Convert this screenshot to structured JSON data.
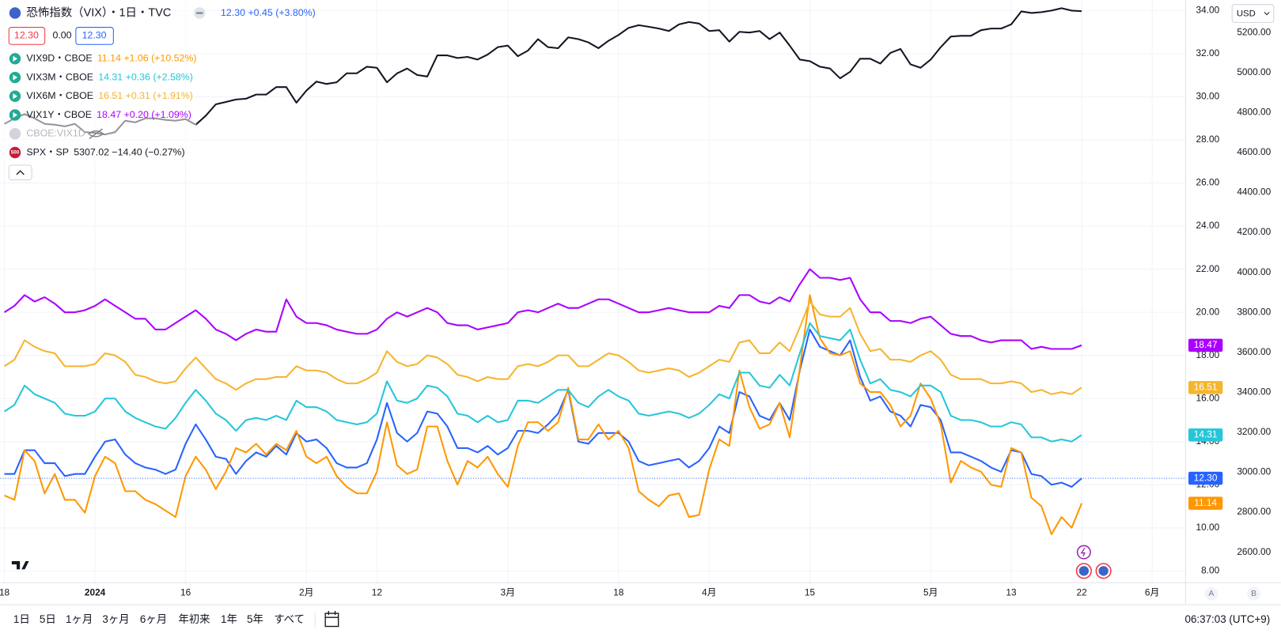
{
  "header": {
    "sell": "12.30",
    "spread": "0.00",
    "buy": "12.30",
    "hidden_series": "CBOE:VIX1D",
    "currency": "USD"
  },
  "chart_data": {
    "type": "line",
    "categories": [
      "18",
      null,
      null,
      null,
      null,
      null,
      null,
      null,
      null,
      "2024",
      null,
      null,
      null,
      null,
      null,
      null,
      null,
      null,
      "16",
      null,
      null,
      null,
      null,
      null,
      null,
      null,
      null,
      null,
      null,
      null,
      "2月",
      null,
      null,
      null,
      null,
      null,
      null,
      "12",
      null,
      null,
      null,
      null,
      null,
      null,
      null,
      null,
      null,
      null,
      null,
      null,
      "3月",
      null,
      null,
      null,
      null,
      null,
      null,
      null,
      null,
      null,
      null,
      "18",
      null,
      null,
      null,
      null,
      null,
      null,
      null,
      null,
      "4月",
      null,
      null,
      null,
      null,
      null,
      null,
      null,
      null,
      null,
      "15",
      null,
      null,
      null,
      null,
      null,
      null,
      null,
      null,
      null,
      null,
      null,
      "5月",
      null,
      null,
      null,
      null,
      null,
      null,
      null,
      "13",
      null,
      null,
      null,
      null,
      null,
      null,
      "22",
      null,
      null,
      null,
      null,
      null,
      null,
      "6月"
    ],
    "series": [
      {
        "name": "恐怖指数（VIX）・1日・TVC",
        "legend_value": "12.30 +0.45 (+3.80%)",
        "price_tag": "12.30",
        "color": "#2962ff",
        "values": [
          12.5,
          12.5,
          13.6,
          13.6,
          13.0,
          13.0,
          12.4,
          12.5,
          12.5,
          13.3,
          14.0,
          14.1,
          13.4,
          13.0,
          12.8,
          12.7,
          12.5,
          12.7,
          13.9,
          14.8,
          14.1,
          13.3,
          13.2,
          12.5,
          13.1,
          13.5,
          13.3,
          13.8,
          13.4,
          14.4,
          14.0,
          14.1,
          13.7,
          13.0,
          12.8,
          12.8,
          13.0,
          14.1,
          15.8,
          14.4,
          14.0,
          14.4,
          15.4,
          15.3,
          14.7,
          13.7,
          13.7,
          13.5,
          13.8,
          13.4,
          13.7,
          14.5,
          14.5,
          14.4,
          14.8,
          15.3,
          16.4,
          14.0,
          13.9,
          14.4,
          14.4,
          14.4,
          14.0,
          13.1,
          12.9,
          13.0,
          13.1,
          13.2,
          12.8,
          13.1,
          13.7,
          14.7,
          14.4,
          16.3,
          16.1,
          15.2,
          15.0,
          15.8,
          15.0,
          17.3,
          19.2,
          18.4,
          18.2,
          18.0,
          18.7,
          17.0,
          15.9,
          16.1,
          15.4,
          15.2,
          14.7,
          15.7,
          15.6,
          15.0,
          13.5,
          13.5,
          13.3,
          13.1,
          12.8,
          12.6,
          13.6,
          13.5,
          12.5,
          12.4,
          12.0,
          12.1,
          11.9,
          12.3,
          null,
          null,
          null,
          null,
          null,
          null,
          null
        ]
      },
      {
        "name": "VIX9D・CBOE",
        "legend_value": "11.14 +1.06 (+10.52%)",
        "price_tag": "11.14",
        "color": "#ff9800",
        "values": [
          11.5,
          11.3,
          13.6,
          13.1,
          11.6,
          12.5,
          11.3,
          11.3,
          10.7,
          12.4,
          13.3,
          13.0,
          11.7,
          11.7,
          11.3,
          11.1,
          10.8,
          10.5,
          12.4,
          13.3,
          12.7,
          11.8,
          12.6,
          13.7,
          13.5,
          13.9,
          13.4,
          13.9,
          13.6,
          14.5,
          13.3,
          13.0,
          13.3,
          12.4,
          11.9,
          11.6,
          11.6,
          12.6,
          14.9,
          12.9,
          12.5,
          12.7,
          14.7,
          14.7,
          13.1,
          12.0,
          13.1,
          12.8,
          13.3,
          12.5,
          11.9,
          13.8,
          14.9,
          14.9,
          14.5,
          14.9,
          16.5,
          14.1,
          14.1,
          14.8,
          14.1,
          14.5,
          13.7,
          11.7,
          11.3,
          11.0,
          11.5,
          11.6,
          10.5,
          10.6,
          12.7,
          14.1,
          13.8,
          17.3,
          15.6,
          14.6,
          14.8,
          15.8,
          14.2,
          17.4,
          20.8,
          18.8,
          18.1,
          18.0,
          18.2,
          16.7,
          16.3,
          16.3,
          15.7,
          14.7,
          15.2,
          16.7,
          16.0,
          14.8,
          12.1,
          13.1,
          12.8,
          12.6,
          12.0,
          11.9,
          13.7,
          13.5,
          11.4,
          11.0,
          9.7,
          10.5,
          10.0,
          11.14,
          null,
          null,
          null,
          null,
          null,
          null,
          null
        ]
      },
      {
        "name": "VIX3M・CBOE",
        "legend_value": "14.31 +0.36 (+2.58%)",
        "price_tag": "14.31",
        "color": "#26c6da",
        "values": [
          15.4,
          15.7,
          16.6,
          16.2,
          16.0,
          15.8,
          15.3,
          15.2,
          15.2,
          15.4,
          16.0,
          16.0,
          15.4,
          15.1,
          14.9,
          14.7,
          14.6,
          15.1,
          15.8,
          16.4,
          15.9,
          15.3,
          15.0,
          14.5,
          15.0,
          15.1,
          15.0,
          15.2,
          15.0,
          15.9,
          15.6,
          15.6,
          15.4,
          15.0,
          14.9,
          14.8,
          14.9,
          15.3,
          16.8,
          15.9,
          15.8,
          16.0,
          16.6,
          16.5,
          16.1,
          15.3,
          15.2,
          14.9,
          15.2,
          14.9,
          15.0,
          15.9,
          15.9,
          15.8,
          16.1,
          16.4,
          16.4,
          15.8,
          15.6,
          16.1,
          16.4,
          16.1,
          15.9,
          15.3,
          15.2,
          15.3,
          15.4,
          15.3,
          15.1,
          15.3,
          15.7,
          16.2,
          16.0,
          17.2,
          17.2,
          16.6,
          16.5,
          17.1,
          16.6,
          18.1,
          19.5,
          18.9,
          18.8,
          18.7,
          19.2,
          17.8,
          16.7,
          16.9,
          16.4,
          16.3,
          16.1,
          16.6,
          16.6,
          16.3,
          15.2,
          15.0,
          15.0,
          14.9,
          14.7,
          14.7,
          14.9,
          14.8,
          14.2,
          14.2,
          14.0,
          14.1,
          14.0,
          14.31,
          null,
          null,
          null,
          null,
          null,
          null,
          null
        ]
      },
      {
        "name": "VIX6M・CBOE",
        "legend_value": "16.51 +0.31 (+1.91%)",
        "price_tag": "16.51",
        "color": "#f6b52e",
        "values": [
          17.5,
          17.8,
          18.7,
          18.4,
          18.2,
          18.1,
          17.5,
          17.5,
          17.5,
          17.6,
          18.1,
          18.0,
          17.7,
          17.1,
          17.0,
          16.8,
          16.7,
          16.8,
          17.4,
          17.9,
          17.4,
          16.9,
          16.7,
          16.4,
          16.7,
          16.9,
          16.9,
          17.0,
          17.0,
          17.5,
          17.3,
          17.3,
          17.2,
          16.9,
          16.7,
          16.7,
          16.9,
          17.2,
          18.2,
          17.7,
          17.5,
          17.6,
          18.0,
          17.9,
          17.6,
          17.1,
          17.0,
          16.8,
          17.0,
          16.9,
          16.9,
          17.5,
          17.6,
          17.5,
          17.7,
          18.0,
          18.0,
          17.5,
          17.5,
          17.8,
          18.1,
          18.0,
          17.7,
          17.3,
          17.2,
          17.3,
          17.4,
          17.3,
          17.0,
          17.2,
          17.5,
          17.8,
          17.7,
          18.6,
          18.7,
          18.1,
          18.1,
          18.6,
          18.2,
          19.3,
          20.5,
          19.9,
          19.8,
          19.8,
          20.2,
          19.0,
          18.2,
          18.3,
          17.8,
          17.8,
          17.7,
          18.0,
          18.2,
          17.8,
          17.1,
          16.9,
          16.9,
          16.9,
          16.7,
          16.7,
          16.8,
          16.7,
          16.3,
          16.4,
          16.2,
          16.3,
          16.2,
          16.51,
          null,
          null,
          null,
          null,
          null,
          null,
          null
        ]
      },
      {
        "name": "VIX1Y・CBOE",
        "legend_value": "18.47 +0.20 (+1.09%)",
        "price_tag": "18.47",
        "color": "#aa00ff",
        "values": [
          20.0,
          20.3,
          20.8,
          20.5,
          20.7,
          20.4,
          20.0,
          20.0,
          20.1,
          20.3,
          20.6,
          20.3,
          20.0,
          19.7,
          19.7,
          19.2,
          19.2,
          19.5,
          19.8,
          20.1,
          19.7,
          19.2,
          19.0,
          18.7,
          19.0,
          19.2,
          19.1,
          19.1,
          20.6,
          19.8,
          19.5,
          19.5,
          19.4,
          19.2,
          19.1,
          19.0,
          19.0,
          19.2,
          19.7,
          20.0,
          19.8,
          20.0,
          20.2,
          20.0,
          19.5,
          19.4,
          19.4,
          19.2,
          19.3,
          19.4,
          19.5,
          20.0,
          20.1,
          20.0,
          20.2,
          20.4,
          20.2,
          20.2,
          20.4,
          20.6,
          20.6,
          20.4,
          20.2,
          20.0,
          20.0,
          20.1,
          20.2,
          20.1,
          20.0,
          20.0,
          20.0,
          20.3,
          20.2,
          20.8,
          20.8,
          20.5,
          20.4,
          20.7,
          20.5,
          21.3,
          22.0,
          21.6,
          21.6,
          21.5,
          21.6,
          20.6,
          20.0,
          20.0,
          19.6,
          19.6,
          19.5,
          19.7,
          19.8,
          19.4,
          19.0,
          18.9,
          18.9,
          18.7,
          18.6,
          18.7,
          18.7,
          18.7,
          18.3,
          18.4,
          18.3,
          18.3,
          18.3,
          18.47,
          null,
          null,
          null,
          null,
          null,
          null,
          null
        ]
      },
      {
        "name": "SPX・SP",
        "legend_value": "5307.02 −14.40 (−0.27%)",
        "badge": "500",
        "color": "#131722",
        "axis": "y2",
        "values": [
          4743,
          4771,
          4792,
          4771,
          4743,
          4739,
          4731,
          4743,
          4702,
          4698,
          4690,
          4702,
          4759,
          4751,
          4771,
          4771,
          4763,
          4759,
          4767,
          4739,
          4784,
          4841,
          4853,
          4865,
          4869,
          4890,
          4890,
          4927,
          4927,
          4849,
          4910,
          4955,
          4943,
          4951,
          4996,
          4996,
          5029,
          5024,
          4951,
          4996,
          5020,
          4988,
          4980,
          5086,
          5086,
          5073,
          5078,
          5065,
          5090,
          5127,
          5135,
          5082,
          5110,
          5167,
          5127,
          5122,
          5176,
          5167,
          5151,
          5122,
          5159,
          5188,
          5224,
          5237,
          5229,
          5220,
          5208,
          5241,
          5253,
          5245,
          5208,
          5212,
          5155,
          5204,
          5200,
          5208,
          5167,
          5200,
          5135,
          5065,
          5057,
          5029,
          5020,
          4971,
          5004,
          5069,
          5069,
          5045,
          5098,
          5118,
          5041,
          5024,
          5065,
          5127,
          5180,
          5184,
          5184,
          5212,
          5220,
          5220,
          5241,
          5306,
          5298,
          5302,
          5310,
          5322,
          5310,
          5307.02,
          null,
          null,
          null,
          null,
          null,
          null,
          null
        ]
      }
    ],
    "ylim": [
      7.47,
      34.49
    ],
    "yticks": [
      {
        "value": 8,
        "label": "8.00"
      },
      {
        "value": 10,
        "label": "10.00"
      },
      {
        "value": 12,
        "label": "12.00"
      },
      {
        "value": 14,
        "label": "14.00"
      },
      {
        "value": 16,
        "label": "16.00"
      },
      {
        "value": 18,
        "label": "18.00"
      },
      {
        "value": 20,
        "label": "20.00"
      },
      {
        "value": 22,
        "label": "22.00"
      },
      {
        "value": 24,
        "label": "24.00"
      },
      {
        "value": 26,
        "label": "26.00"
      },
      {
        "value": 28,
        "label": "28.00"
      },
      {
        "value": 30,
        "label": "30.00"
      },
      {
        "value": 32,
        "label": "32.00"
      },
      {
        "value": 34,
        "label": "34.00"
      }
    ],
    "y2lim": [
      2449,
      5363
    ],
    "y2ticks": [
      {
        "value": 2600,
        "label": "2600.00"
      },
      {
        "value": 2800,
        "label": "2800.00"
      },
      {
        "value": 3000,
        "label": "3000.00"
      },
      {
        "value": 3200,
        "label": "3200.00"
      },
      {
        "value": 3400,
        "label": "3400.00"
      },
      {
        "value": 3600,
        "label": "3600.00"
      },
      {
        "value": 3800,
        "label": "3800.00"
      },
      {
        "value": 4000,
        "label": "4000.00"
      },
      {
        "value": 4200,
        "label": "4200.00"
      },
      {
        "value": 4400,
        "label": "4400.00"
      },
      {
        "value": 4600,
        "label": "4600.00"
      },
      {
        "value": 4800,
        "label": "4800.00"
      },
      {
        "value": 5000,
        "label": "5000.00"
      },
      {
        "value": 5200,
        "label": "5200.00"
      }
    ],
    "grid": true,
    "last_price_line": true
  },
  "toolbar": {
    "ranges": [
      "1日",
      "5日",
      "1ヶ月",
      "3ヶ月",
      "6ヶ月",
      "年初来",
      "1年",
      "5年",
      "すべて"
    ],
    "clock": "06:37:03 (UTC+9)",
    "scale_buttons": [
      "A",
      "B"
    ]
  }
}
